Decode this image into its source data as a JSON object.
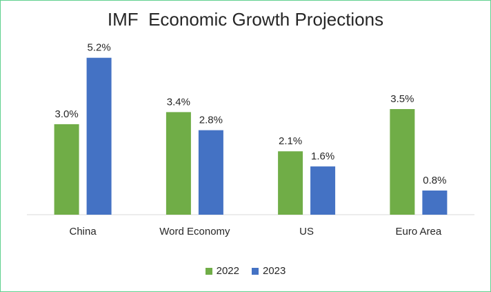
{
  "chart_data": {
    "type": "bar",
    "title": "IMF  Economic Growth Projections",
    "categories": [
      "China",
      "Word Economy",
      "US",
      "Euro Area"
    ],
    "series": [
      {
        "name": "2022",
        "values": [
          3.0,
          3.4,
          2.1,
          3.5
        ],
        "labels": [
          "3.0%",
          "3.4%",
          "2.1%",
          "3.5%"
        ],
        "color": "#70ad47"
      },
      {
        "name": "2023",
        "values": [
          5.2,
          2.8,
          1.6,
          0.8
        ],
        "labels": [
          "5.2%",
          "2.8%",
          "1.6%",
          "0.8%"
        ],
        "color": "#4472c4"
      }
    ],
    "xlabel": "",
    "ylabel": "",
    "ylim": [
      0,
      5.4
    ],
    "grid": false,
    "legend_position": "bottom"
  }
}
